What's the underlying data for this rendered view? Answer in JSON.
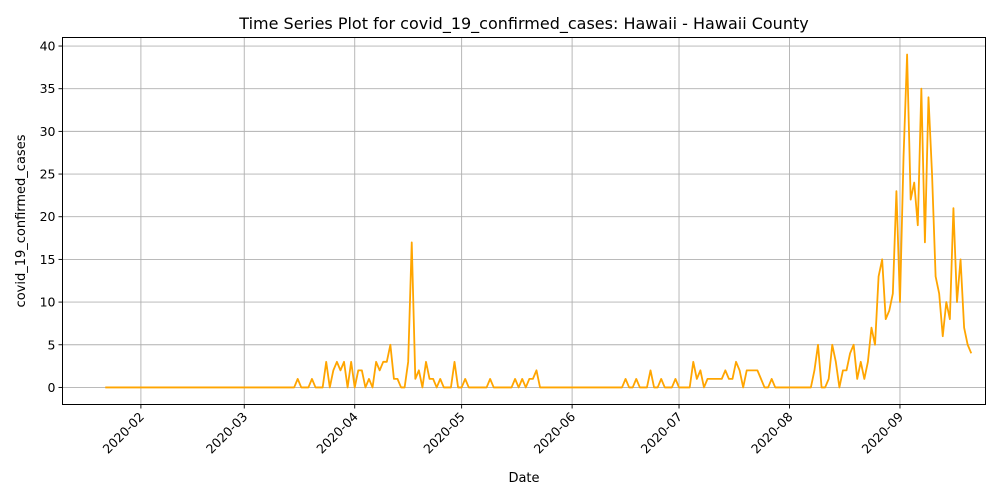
{
  "chart_data": {
    "type": "line",
    "title": "Time Series Plot for covid_19_confirmed_cases: Hawaii - Hawaii County",
    "xlabel": "Date",
    "ylabel": "covid_19_confirmed_cases",
    "x_range": [
      "2020-01-10",
      "2020-09-25"
    ],
    "ylim": [
      -2,
      41
    ],
    "y_ticks": [
      0,
      5,
      10,
      15,
      20,
      25,
      30,
      35,
      40
    ],
    "x_ticks": [
      "2020-02",
      "2020-03",
      "2020-04",
      "2020-05",
      "2020-06",
      "2020-07",
      "2020-08",
      "2020-09"
    ],
    "grid": true,
    "series": [
      {
        "color": "#ffa500",
        "x_start": "2020-01-22",
        "values": [
          0,
          0,
          0,
          0,
          0,
          0,
          0,
          0,
          0,
          0,
          0,
          0,
          0,
          0,
          0,
          0,
          0,
          0,
          0,
          0,
          0,
          0,
          0,
          0,
          0,
          0,
          0,
          0,
          0,
          0,
          0,
          0,
          0,
          0,
          0,
          0,
          0,
          0,
          0,
          0,
          0,
          0,
          0,
          0,
          0,
          0,
          0,
          0,
          0,
          0,
          0,
          0,
          0,
          0,
          1,
          0,
          0,
          0,
          1,
          0,
          0,
          0,
          3,
          0,
          2,
          3,
          2,
          3,
          0,
          3,
          0,
          2,
          2,
          0,
          1,
          0,
          3,
          2,
          3,
          3,
          5,
          1,
          1,
          0,
          0,
          3,
          17,
          1,
          2,
          0,
          3,
          1,
          1,
          0,
          1,
          0,
          0,
          0,
          3,
          0,
          0,
          1,
          0,
          0,
          0,
          0,
          0,
          0,
          1,
          0,
          0,
          0,
          0,
          0,
          0,
          1,
          0,
          1,
          0,
          1,
          1,
          2,
          0,
          0,
          0,
          0,
          0,
          0,
          0,
          0,
          0,
          0,
          0,
          0,
          0,
          0,
          0,
          0,
          0,
          0,
          0,
          0,
          0,
          0,
          0,
          0,
          1,
          0,
          0,
          1,
          0,
          0,
          0,
          2,
          0,
          0,
          1,
          0,
          0,
          0,
          1,
          0,
          0,
          0,
          0,
          3,
          1,
          2,
          0,
          1,
          1,
          1,
          1,
          1,
          2,
          1,
          1,
          3,
          2,
          0,
          2,
          2,
          2,
          2,
          1,
          0,
          0,
          1,
          0,
          0,
          0,
          0,
          0,
          0,
          0,
          0,
          0,
          0,
          0,
          2,
          5,
          0,
          0,
          1,
          5,
          3,
          0,
          2,
          2,
          4,
          5,
          1,
          3,
          1,
          3,
          7,
          5,
          13,
          15,
          8,
          9,
          11,
          23,
          10,
          27,
          39,
          22,
          24,
          19,
          35,
          17,
          34,
          25,
          13,
          11,
          6,
          10,
          8,
          21,
          10,
          15,
          7,
          5,
          4
        ]
      }
    ]
  }
}
